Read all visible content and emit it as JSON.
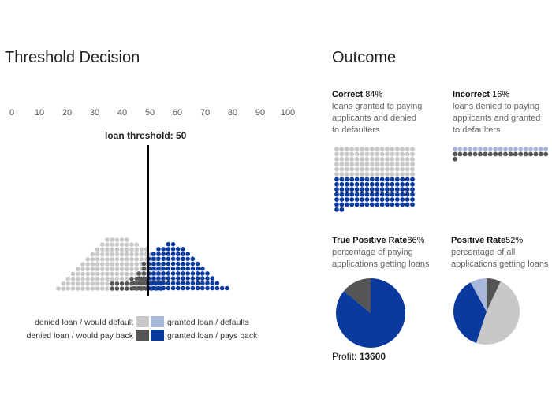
{
  "left": {
    "title": "Threshold Decision",
    "axis_ticks": [
      "0",
      "10",
      "20",
      "30",
      "40",
      "50",
      "60",
      "70",
      "80",
      "90",
      "100"
    ],
    "threshold_label": "loan threshold: 50",
    "threshold_value": 50,
    "legend": {
      "denied_default": "denied loan / would default",
      "denied_pay": "denied loan / would pay back",
      "granted_default": "granted loan / defaults",
      "granted_pay": "granted loan / pays back"
    }
  },
  "right": {
    "title": "Outcome",
    "correct": {
      "label": "Correct",
      "pct": "84%",
      "desc_lines": [
        "loans granted to paying",
        "applicants and denied",
        "to defaulters"
      ]
    },
    "incorrect": {
      "label": "Incorrect",
      "pct": "16%",
      "desc_lines": [
        "loans denied to paying",
        "applicants and granted",
        "to defaulters"
      ]
    },
    "tpr": {
      "label": "True Positive Rate",
      "pct": "86%",
      "value": 0.86,
      "desc_lines": [
        "percentage of paying",
        "applications getting loans"
      ]
    },
    "pr": {
      "label": "Positive Rate",
      "pct": "52%",
      "value": 0.52,
      "desc_lines": [
        "percentage of all",
        "applications getting loans"
      ]
    },
    "profit_label": "Profit:",
    "profit_value": "13600"
  },
  "colors": {
    "denied_default": "#c8c8c8",
    "denied_pay": "#555555",
    "granted_default": "#a9b7dd",
    "granted_pay": "#0b3a9f",
    "pie_gray": "#c8c8c8",
    "pie_dark": "#555555",
    "pie_light": "#a9b7dd",
    "pie_blue": "#0b3a9f"
  }
}
